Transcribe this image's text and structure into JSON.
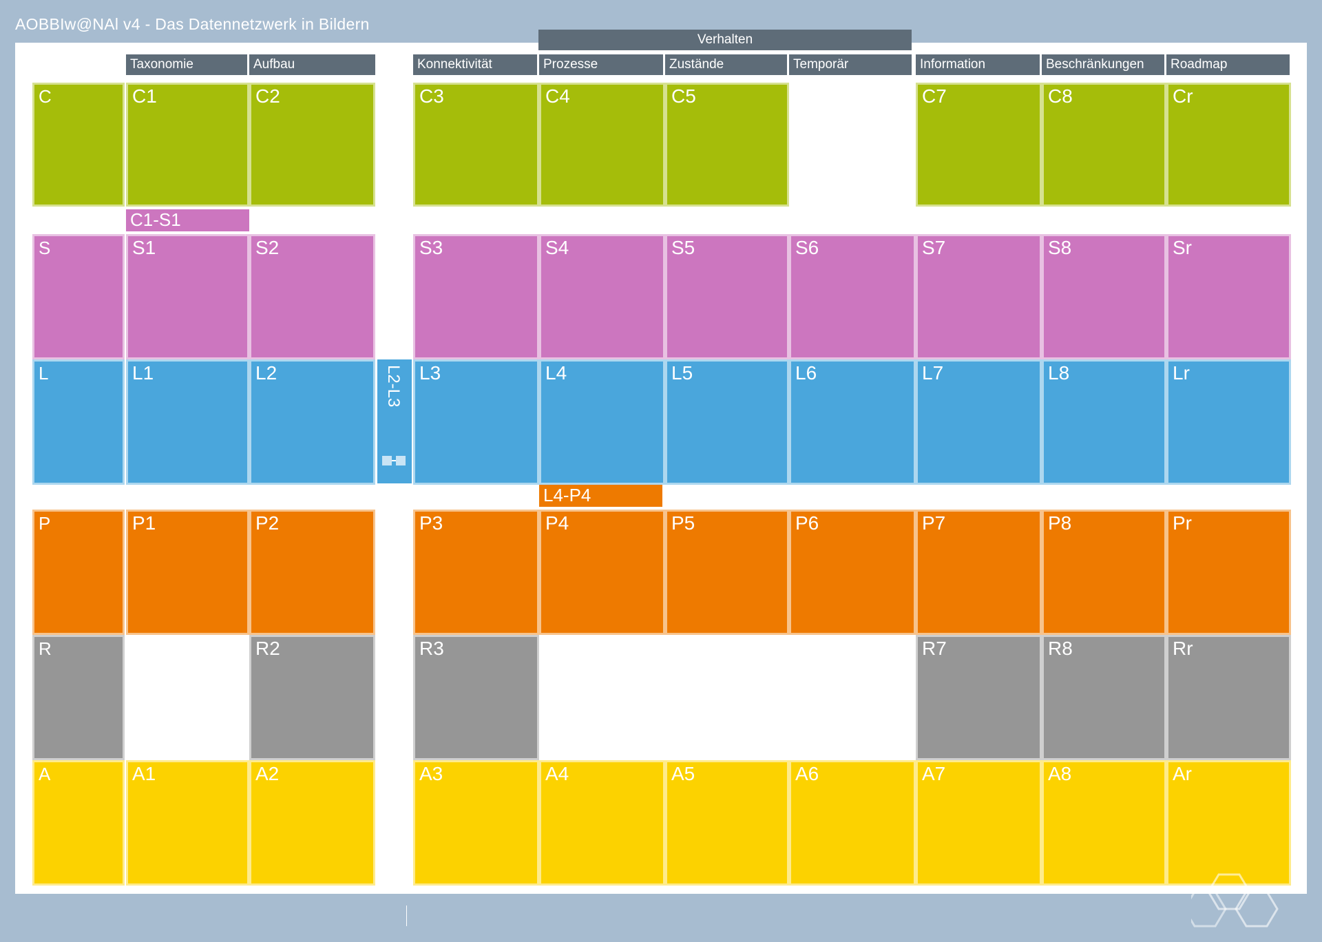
{
  "title": "AOBBIw@NAl v4 - Das Datennetzwerk in Bildern",
  "headers": {
    "group": "Verhalten",
    "columns": [
      "Taxonomie",
      "Aufbau",
      "Konnektivität",
      "Prozesse",
      "Zustände",
      "Temporär",
      "Information",
      "Beschränkungen",
      "Roadmap"
    ]
  },
  "rows": [
    {
      "key": "C",
      "code": "C",
      "sub": "",
      "cells": [
        [
          "C1",
          ""
        ],
        [
          "C2",
          ""
        ],
        [
          "C3",
          ""
        ],
        [
          "C4",
          ""
        ],
        [
          "C5",
          ""
        ],
        null,
        [
          "C7",
          ""
        ],
        [
          "C8",
          ""
        ],
        [
          "Cr",
          ""
        ]
      ]
    },
    {
      "key": "S",
      "code": "S",
      "sub": "",
      "cells": [
        [
          "S1",
          ""
        ],
        [
          "S2",
          ""
        ],
        [
          "S3",
          ""
        ],
        [
          "S4",
          ""
        ],
        [
          "S5",
          ""
        ],
        [
          "S6",
          ""
        ],
        [
          "S7",
          ""
        ],
        [
          "S8",
          ""
        ],
        [
          "Sr",
          ""
        ]
      ]
    },
    {
      "key": "L",
      "code": "L",
      "sub": "",
      "cells": [
        [
          "L1",
          ""
        ],
        [
          "L2",
          ""
        ],
        [
          "L3",
          ""
        ],
        [
          "L4",
          ""
        ],
        [
          "L5",
          ""
        ],
        [
          "L6",
          ""
        ],
        [
          "L7",
          ""
        ],
        [
          "L8",
          ""
        ],
        [
          "Lr",
          ""
        ]
      ]
    },
    {
      "key": "P",
      "code": "P",
      "sub": "",
      "cells": [
        [
          "P1",
          ""
        ],
        [
          "P2",
          ""
        ],
        [
          "P3",
          ""
        ],
        [
          "P4",
          ""
        ],
        [
          "P5",
          ""
        ],
        [
          "P6",
          ""
        ],
        [
          "P7",
          ""
        ],
        [
          "P8",
          ""
        ],
        [
          "Pr",
          ""
        ]
      ]
    },
    {
      "key": "R",
      "code": "R",
      "sub": "",
      "cells": [
        null,
        [
          "R2",
          ""
        ],
        [
          "R3",
          ""
        ],
        null,
        null,
        null,
        [
          "R7",
          ""
        ],
        [
          "R8",
          ""
        ],
        [
          "Rr",
          ""
        ]
      ]
    },
    {
      "key": "A",
      "code": "A",
      "sub": "",
      "cells": [
        [
          "A1",
          ""
        ],
        [
          "A2",
          ""
        ],
        [
          "A3",
          ""
        ],
        [
          "A4",
          ""
        ],
        [
          "A5",
          ""
        ],
        [
          "A6",
          ""
        ],
        [
          "A7",
          ""
        ],
        [
          "A8",
          ""
        ],
        [
          "Ar",
          ""
        ]
      ]
    }
  ],
  "bridges": {
    "c1s1": "C1-S1",
    "l2l3": "L2-L3",
    "l4p4": "L4-P4"
  },
  "footer": {
    "left": "",
    "mid": "",
    "url": ""
  },
  "colors": {
    "C": "#a5bd0a",
    "S": "#cc76bf",
    "L": "#4aa6dc",
    "P": "#ee7a00",
    "R": "#969696",
    "A": "#fcd200",
    "frame": "#a7bcd0",
    "header": "#5e6c78"
  }
}
